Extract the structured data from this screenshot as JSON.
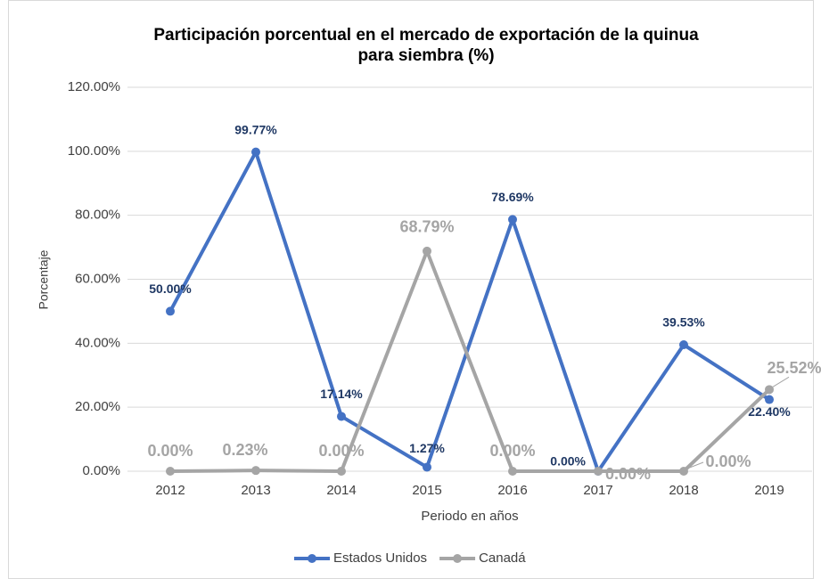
{
  "chart_data": {
    "type": "line",
    "title": [
      "Participación porcentual en el mercado de exportación de la quinua",
      "para siembra (%)"
    ],
    "x_label": "Periodo en años",
    "y_label": "Porcentaje",
    "categories": [
      "2012",
      "2013",
      "2014",
      "2015",
      "2016",
      "2017",
      "2018",
      "2019"
    ],
    "series": [
      {
        "name": "Estados Unidos",
        "color": "#4472c4",
        "label_color": "#1f3864",
        "values": [
          50,
          99.77,
          17.14,
          1.27,
          78.69,
          0,
          39.53,
          22.4
        ],
        "value_labels": [
          "50.00%",
          "99.77%",
          "17.14%",
          "1.27%",
          "78.69%",
          "0.00%",
          "39.53%",
          "22.40%"
        ]
      },
      {
        "name": "Canadá",
        "color": "#a5a5a5",
        "label_color": "#a5a5a5",
        "values": [
          0,
          0.23,
          0,
          68.79,
          0,
          0,
          0,
          25.52
        ],
        "value_labels": [
          "0.00%",
          "0.23%",
          "0.00%",
          "68.79%",
          "0.00%",
          "0.00%",
          "0.00%",
          "25.52%"
        ]
      }
    ],
    "ylim": [
      0,
      120
    ],
    "yticks": [
      {
        "value": 0,
        "label": "0.00%"
      },
      {
        "value": 20,
        "label": "20.00%"
      },
      {
        "value": 40,
        "label": "40.00%"
      },
      {
        "value": 60,
        "label": "60.00%"
      },
      {
        "value": 80,
        "label": "80.00%"
      },
      {
        "value": 100,
        "label": "100.00%"
      },
      {
        "value": 120,
        "label": "120.00%"
      }
    ],
    "grid": true,
    "legend": "bottom"
  }
}
